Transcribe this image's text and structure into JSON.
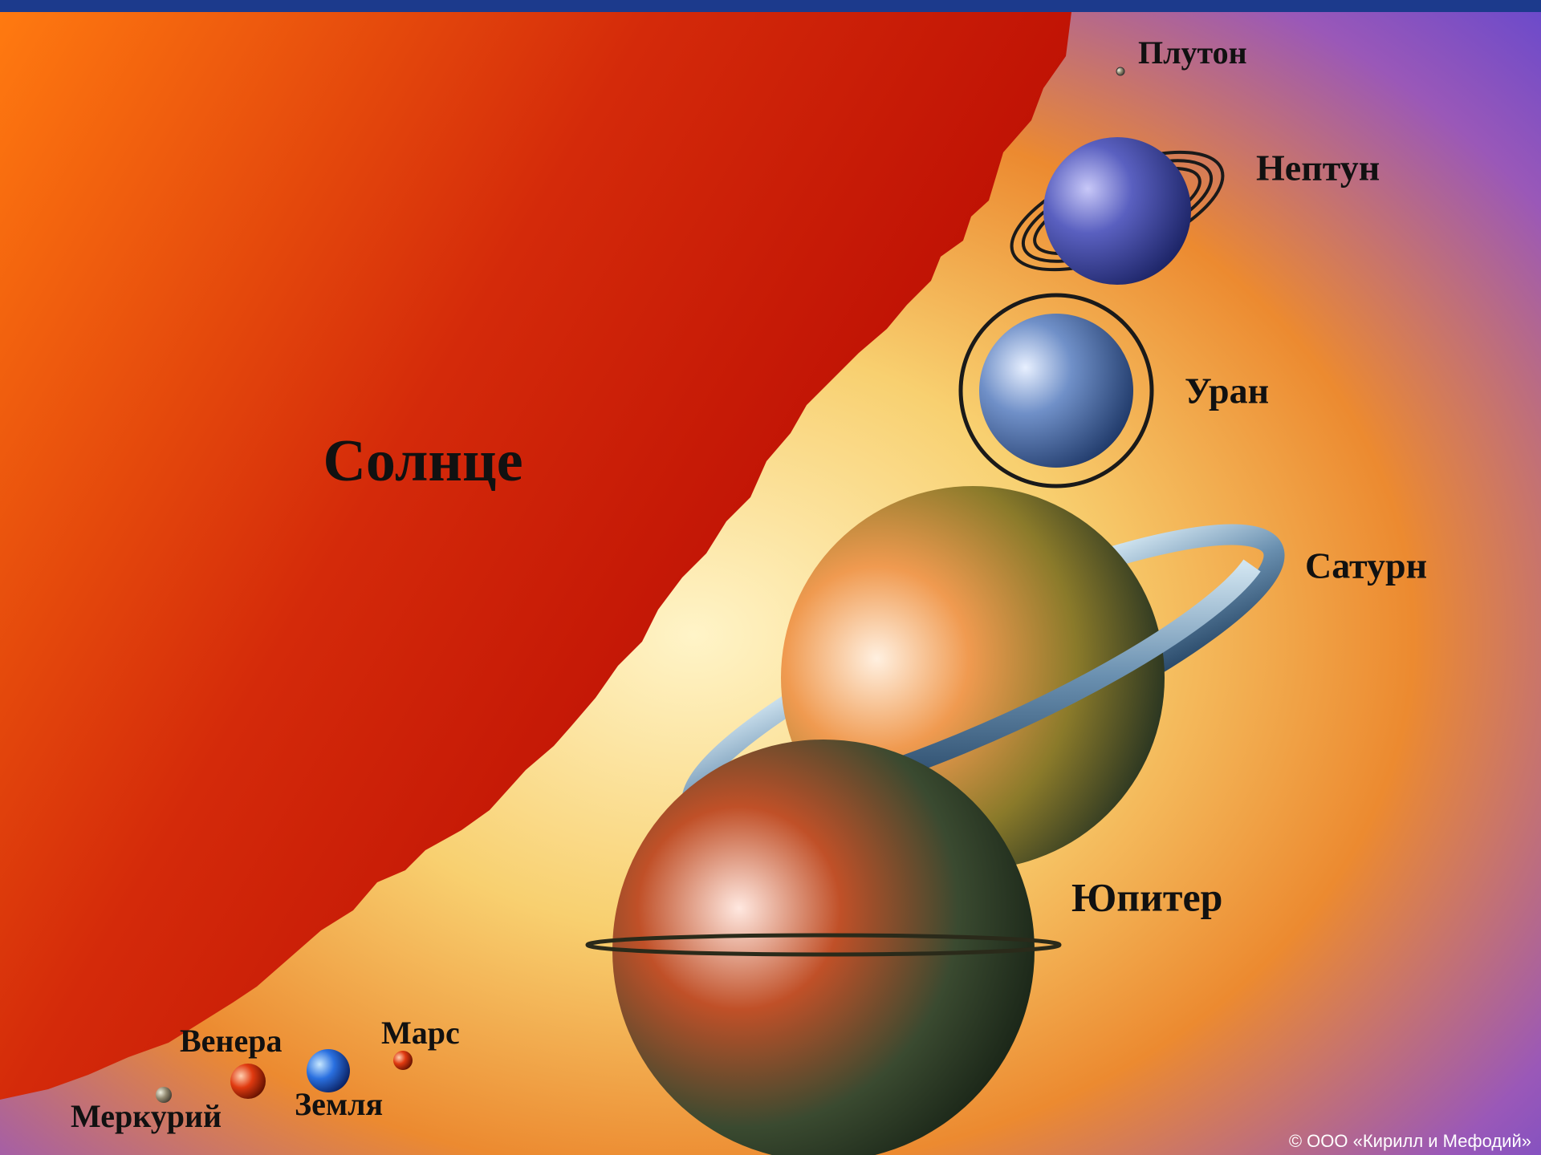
{
  "sun": {
    "label": "Солнце"
  },
  "planets": [
    {
      "label": "Плутон"
    },
    {
      "label": "Нептун"
    },
    {
      "label": "Уран"
    },
    {
      "label": "Сатурн"
    },
    {
      "label": "Юпитер"
    },
    {
      "label": "Марс"
    },
    {
      "label": "Венера"
    },
    {
      "label": "Земля"
    },
    {
      "label": "Меркурий"
    }
  ],
  "copyright": "© ООО «Кирилл и Мефодий»"
}
